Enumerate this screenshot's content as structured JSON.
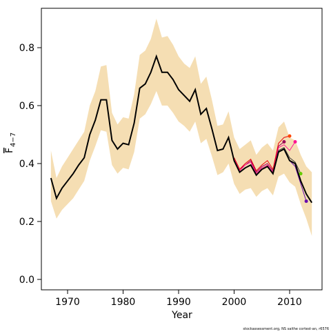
{
  "chart_data": {
    "type": "line",
    "x_label": "Year",
    "y_label": "F",
    "y_label_sub": "4−7",
    "footnote": "stockassessment.org, NS saithe cortest-an, r6576",
    "x": [
      1967,
      1968,
      1969,
      1970,
      1971,
      1972,
      1973,
      1974,
      1975,
      1976,
      1977,
      1978,
      1979,
      1980,
      1981,
      1982,
      1983,
      1984,
      1985,
      1986,
      1987,
      1988,
      1989,
      1990,
      1991,
      1992,
      1993,
      1994,
      1995,
      1996,
      1997,
      1998,
      1999,
      2000,
      2001,
      2002,
      2003,
      2004,
      2005,
      2006,
      2007,
      2008,
      2009,
      2010,
      2011,
      2012,
      2013,
      2014
    ],
    "estimate": {
      "color": "#000000",
      "values": [
        0.35,
        0.28,
        0.315,
        0.34,
        0.365,
        0.395,
        0.42,
        0.5,
        0.55,
        0.62,
        0.62,
        0.48,
        0.45,
        0.47,
        0.465,
        0.54,
        0.66,
        0.675,
        0.715,
        0.77,
        0.715,
        0.715,
        0.69,
        0.655,
        0.635,
        0.615,
        0.655,
        0.57,
        0.59,
        0.52,
        0.445,
        0.45,
        0.49,
        0.41,
        0.37,
        0.385,
        0.395,
        0.36,
        0.38,
        0.39,
        0.365,
        0.44,
        0.45,
        0.41,
        0.4,
        0.34,
        0.295,
        0.265
      ]
    },
    "band": {
      "color": "#f5deb3",
      "upper": [
        0.445,
        0.35,
        0.39,
        0.42,
        0.45,
        0.48,
        0.51,
        0.6,
        0.65,
        0.735,
        0.74,
        0.575,
        0.535,
        0.56,
        0.555,
        0.64,
        0.775,
        0.79,
        0.83,
        0.9,
        0.835,
        0.84,
        0.81,
        0.77,
        0.745,
        0.73,
        0.77,
        0.675,
        0.7,
        0.62,
        0.53,
        0.535,
        0.58,
        0.49,
        0.45,
        0.465,
        0.48,
        0.43,
        0.455,
        0.47,
        0.445,
        0.525,
        0.545,
        0.49,
        0.48,
        0.43,
        0.39,
        0.37
      ],
      "lower": [
        0.27,
        0.21,
        0.24,
        0.26,
        0.28,
        0.31,
        0.34,
        0.41,
        0.46,
        0.515,
        0.51,
        0.395,
        0.365,
        0.385,
        0.38,
        0.44,
        0.555,
        0.57,
        0.605,
        0.65,
        0.6,
        0.6,
        0.575,
        0.545,
        0.53,
        0.51,
        0.545,
        0.47,
        0.485,
        0.425,
        0.36,
        0.37,
        0.4,
        0.33,
        0.295,
        0.31,
        0.315,
        0.285,
        0.305,
        0.315,
        0.29,
        0.355,
        0.365,
        0.335,
        0.32,
        0.26,
        0.21,
        0.15
      ]
    },
    "retro": [
      {
        "color": "#9b0057",
        "point_color": "#9b0057",
        "x": [
          2000,
          2001,
          2002,
          2003,
          2004,
          2005,
          2006,
          2007,
          2008,
          2009
        ],
        "values": [
          0.42,
          0.38,
          0.395,
          0.41,
          0.37,
          0.39,
          0.4,
          0.375,
          0.46,
          0.475
        ]
      },
      {
        "color": "#e8000b",
        "point_color": "#ff4500",
        "x": [
          2000,
          2001,
          2002,
          2003,
          2004,
          2005,
          2006,
          2007,
          2008,
          2009,
          2010
        ],
        "values": [
          0.42,
          0.38,
          0.4,
          0.415,
          0.375,
          0.395,
          0.41,
          0.38,
          0.47,
          0.49,
          0.495
        ]
      },
      {
        "color": "#ff1493",
        "point_color": "#ff1493",
        "x": [
          2000,
          2001,
          2002,
          2003,
          2004,
          2005,
          2006,
          2007,
          2008,
          2009,
          2010,
          2011
        ],
        "values": [
          0.415,
          0.375,
          0.395,
          0.405,
          0.365,
          0.385,
          0.395,
          0.37,
          0.455,
          0.465,
          0.445,
          0.475
        ]
      },
      {
        "color": "#333333",
        "point_color": "#66cc00",
        "x": [
          2000,
          2001,
          2002,
          2003,
          2004,
          2005,
          2006,
          2007,
          2008,
          2009,
          2010,
          2011,
          2012
        ],
        "values": [
          0.41,
          0.37,
          0.385,
          0.395,
          0.36,
          0.38,
          0.39,
          0.365,
          0.445,
          0.455,
          0.42,
          0.405,
          0.365
        ]
      },
      {
        "color": "#6a0dad",
        "point_color": "#6a0dad",
        "x": [
          2000,
          2001,
          2002,
          2003,
          2004,
          2005,
          2006,
          2007,
          2008,
          2009,
          2010,
          2011,
          2012,
          2013
        ],
        "values": [
          0.41,
          0.37,
          0.385,
          0.395,
          0.36,
          0.38,
          0.39,
          0.365,
          0.44,
          0.45,
          0.41,
          0.39,
          0.33,
          0.27
        ]
      }
    ],
    "xlim": [
      1965.28,
      2015.84
    ],
    "ylim": [
      -0.036,
      0.936
    ],
    "xticks": [
      1970,
      1980,
      1990,
      2000,
      2010
    ],
    "yticks": [
      {
        "value": 0,
        "label": "0.0"
      },
      0.2,
      0.4,
      0.6,
      0.8
    ]
  }
}
